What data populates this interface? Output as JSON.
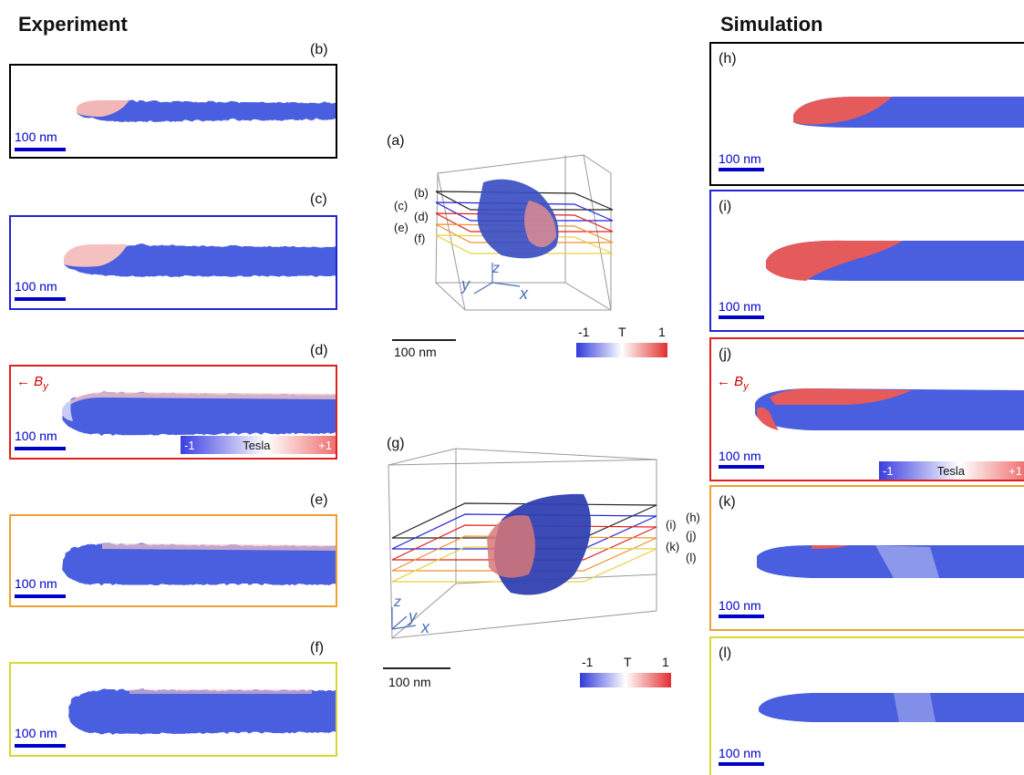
{
  "headings": {
    "left": "Experiment",
    "right": "Simulation"
  },
  "scale_label": "100 nm",
  "panels_left": [
    {
      "id": "(b)",
      "color": "#000000"
    },
    {
      "id": "(c)",
      "color": "#2323d6"
    },
    {
      "id": "(d)",
      "color": "#e02020"
    },
    {
      "id": "(e)",
      "color": "#f0a030"
    },
    {
      "id": "(f)",
      "color": "#d8d830"
    }
  ],
  "panels_right": [
    {
      "id": "(h)",
      "color": "#000000"
    },
    {
      "id": "(i)",
      "color": "#2323d6"
    },
    {
      "id": "(j)",
      "color": "#e02020"
    },
    {
      "id": "(k)",
      "color": "#f0a030"
    },
    {
      "id": "(l)",
      "color": "#d8d830"
    }
  ],
  "by_label": "← B",
  "by_sub": "y",
  "colorbar": {
    "min": "-1",
    "label": "Tesla",
    "max": "+1"
  },
  "center_top": {
    "label": "(a)",
    "slice_labels": [
      "(b)",
      "(c)",
      "(d)",
      "(e)",
      "(f)"
    ],
    "axes": {
      "x": "x",
      "y": "y",
      "z": "z"
    },
    "cbar_min": "-1",
    "cbar_mid": "T",
    "cbar_max": "1",
    "scale": "100 nm"
  },
  "center_bottom": {
    "label": "(g)",
    "slice_labels": [
      "(h)",
      "(i)",
      "(j)",
      "(k)",
      "(l)"
    ],
    "axes": {
      "x": "x",
      "y": "y",
      "z": "z"
    },
    "cbar_min": "-1",
    "cbar_mid": "T",
    "cbar_max": "1",
    "scale": "100 nm"
  }
}
